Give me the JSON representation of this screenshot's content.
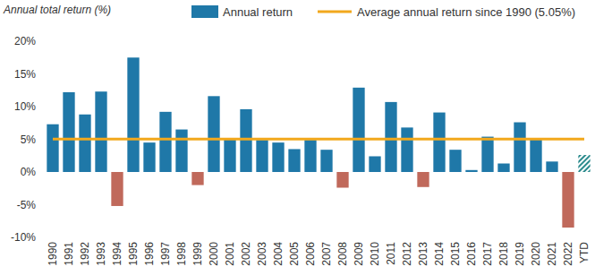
{
  "chart_data": {
    "type": "bar",
    "title": "Annual total return (%)",
    "categories": [
      "1990",
      "1991",
      "1992",
      "1993",
      "1994",
      "1995",
      "1996",
      "1997",
      "1998",
      "1999",
      "2000",
      "2001",
      "2002",
      "2003",
      "2004",
      "2005",
      "2006",
      "2007",
      "2008",
      "2009",
      "2010",
      "2011",
      "2012",
      "2013",
      "2014",
      "2015",
      "2016",
      "2017",
      "2018",
      "2019",
      "2020",
      "2021",
      "2022",
      "YTD"
    ],
    "series": [
      {
        "name": "Annual return",
        "color": "#1f78a8",
        "values": [
          7.3,
          12.2,
          8.8,
          12.3,
          -5.2,
          17.5,
          4.5,
          9.2,
          6.5,
          -2.0,
          11.6,
          5.0,
          9.6,
          4.9,
          4.5,
          3.5,
          4.9,
          3.4,
          -2.4,
          12.9,
          2.4,
          10.7,
          6.8,
          -2.3,
          9.1,
          3.4,
          0.3,
          5.4,
          1.3,
          7.6,
          5.0,
          1.6,
          -8.5,
          2.6
        ],
        "colors": [
          "#1f78a8",
          "#1f78a8",
          "#1f78a8",
          "#1f78a8",
          "#c0695b",
          "#1f78a8",
          "#1f78a8",
          "#1f78a8",
          "#1f78a8",
          "#c0695b",
          "#1f78a8",
          "#1f78a8",
          "#1f78a8",
          "#1f78a8",
          "#1f78a8",
          "#1f78a8",
          "#1f78a8",
          "#1f78a8",
          "#c0695b",
          "#1f78a8",
          "#1f78a8",
          "#1f78a8",
          "#1f78a8",
          "#c0695b",
          "#1f78a8",
          "#1f78a8",
          "#1f78a8",
          "#1f78a8",
          "#1f78a8",
          "#1f78a8",
          "#1f78a8",
          "#1f78a8",
          "#c0695b",
          "#2a8a8c"
        ]
      },
      {
        "name": "Average annual return since 1990 (5.05%)",
        "type": "line",
        "color": "#f2a81d",
        "values": [
          5.05,
          5.05,
          5.05,
          5.05,
          5.05,
          5.05,
          5.05,
          5.05,
          5.05,
          5.05,
          5.05,
          5.05,
          5.05,
          5.05,
          5.05,
          5.05,
          5.05,
          5.05,
          5.05,
          5.05,
          5.05,
          5.05,
          5.05,
          5.05,
          5.05,
          5.05,
          5.05,
          5.05,
          5.05,
          5.05,
          5.05,
          5.05,
          5.05,
          5.05
        ]
      }
    ],
    "ylim": [
      -10,
      20
    ],
    "yticks": [
      {
        "value": -10,
        "label": "-10%"
      },
      {
        "value": -5,
        "label": "-5%"
      },
      {
        "value": 0,
        "label": "0%"
      },
      {
        "value": 5,
        "label": "5%"
      },
      {
        "value": 10,
        "label": "10%"
      },
      {
        "value": 15,
        "label": "15%"
      },
      {
        "value": 20,
        "label": "20%"
      }
    ],
    "grid": false,
    "legend": "top"
  }
}
